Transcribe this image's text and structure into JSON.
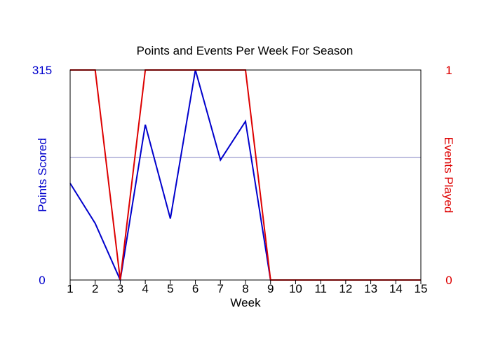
{
  "chart_data": {
    "type": "line",
    "title": "Points and Events Per Week For Season",
    "xlabel": "Week",
    "ylabel_left": "Points Scored",
    "ylabel_right": "Events Played",
    "x": [
      1,
      2,
      3,
      4,
      5,
      6,
      7,
      8,
      9,
      10,
      11,
      12,
      13,
      14,
      15
    ],
    "xlim": [
      1,
      15
    ],
    "ylim_left": [
      0,
      315
    ],
    "ylim_right": [
      0,
      1
    ],
    "left_tick_labels": [
      "0",
      "315"
    ],
    "right_tick_labels": [
      "0",
      "1"
    ],
    "series": [
      {
        "axis": "left",
        "color": "#0000cc",
        "values": [
          145,
          85,
          0,
          233,
          92,
          315,
          180,
          238,
          0,
          0,
          0,
          0,
          0,
          0,
          0
        ]
      },
      {
        "axis": "right",
        "color": "#dd0000",
        "values": [
          1,
          1,
          0,
          1,
          1,
          1,
          1,
          1,
          0,
          0,
          0,
          0,
          0,
          0,
          0
        ]
      }
    ],
    "gridline_left_value": 184,
    "gridline_color": "#8080c0",
    "left_axis_color": "#0000cc",
    "right_axis_color": "#dd0000"
  }
}
